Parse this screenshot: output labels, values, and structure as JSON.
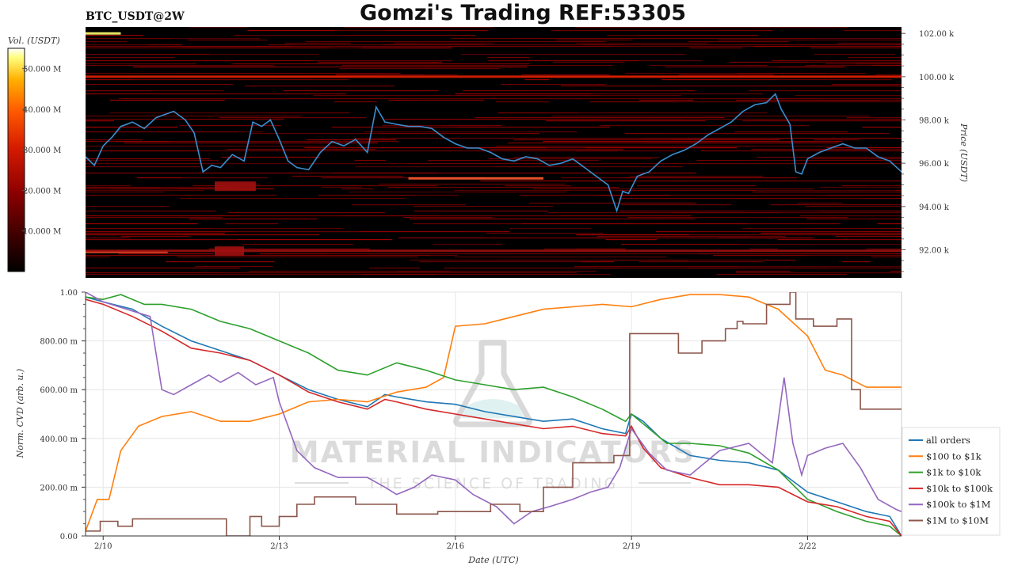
{
  "header": {
    "symbol": "BTC_USDT@2W",
    "title": "Gomzi's Trading REF:53305"
  },
  "watermark": {
    "brand": "MATERIAL INDICATORS",
    "tagline": "THE SCIENCE OF TRADING"
  },
  "chart_data": [
    {
      "type": "heatmap",
      "name": "orderbook-liquidity-heatmap",
      "colorbar": {
        "label": "Vol. (USDT)",
        "range": [
          0,
          55000000
        ],
        "ticks": [
          {
            "value": 10000000,
            "label": "10.000 M"
          },
          {
            "value": 20000000,
            "label": "20.000 M"
          },
          {
            "value": 30000000,
            "label": "30.000 M"
          },
          {
            "value": 40000000,
            "label": "40.000 M"
          },
          {
            "value": 50000000,
            "label": "50.000 M"
          }
        ],
        "colors": [
          "#000000",
          "#3a0000",
          "#8b0000",
          "#d41a00",
          "#ff5a00",
          "#ffb000",
          "#ffff80",
          "#ffffff"
        ]
      },
      "ylabel": "Price (USDT)",
      "ylim": [
        90700,
        102300
      ],
      "yticks": [
        {
          "value": 92000,
          "label": "92.00 k"
        },
        {
          "value": 94000,
          "label": "94.00 k"
        },
        {
          "value": 96000,
          "label": "96.00 k"
        },
        {
          "value": 98000,
          "label": "98.00 k"
        },
        {
          "value": 100000,
          "label": "100.00 k"
        },
        {
          "value": 102000,
          "label": "102.00 k"
        }
      ],
      "xlim": [
        9.7,
        23.6
      ],
      "liquidity_bands": [
        {
          "price": 102000,
          "start": 9.7,
          "end": 10.3,
          "intensity": 0.95
        },
        {
          "price": 100000,
          "start": 9.7,
          "end": 23.6,
          "intensity": 0.7
        },
        {
          "price": 95300,
          "start": 15.2,
          "end": 17.5,
          "intensity": 0.55
        },
        {
          "price": 91900,
          "start": 9.7,
          "end": 11.1,
          "intensity": 0.6
        },
        {
          "price": 91950,
          "start": 9.7,
          "end": 23.6,
          "intensity": 0.35
        },
        {
          "price": 95100,
          "start": 11.9,
          "end": 12.6,
          "intensity": 0.45
        },
        {
          "price": 92100,
          "start": 11.9,
          "end": 12.4,
          "intensity": 0.35
        }
      ],
      "price_series": {
        "name": "BTC price",
        "color": "#3a8fd0",
        "x": [
          9.7,
          9.85,
          10.0,
          10.15,
          10.3,
          10.5,
          10.7,
          10.9,
          11.0,
          11.2,
          11.4,
          11.55,
          11.7,
          11.85,
          12.0,
          12.2,
          12.4,
          12.55,
          12.7,
          12.85,
          13.0,
          13.15,
          13.3,
          13.5,
          13.7,
          13.9,
          14.1,
          14.3,
          14.5,
          14.65,
          14.8,
          15.0,
          15.2,
          15.4,
          15.6,
          15.8,
          16.0,
          16.2,
          16.4,
          16.6,
          16.8,
          17.0,
          17.2,
          17.4,
          17.6,
          17.8,
          18.0,
          18.2,
          18.4,
          18.6,
          18.75,
          18.85,
          18.95,
          19.1,
          19.3,
          19.5,
          19.7,
          19.9,
          20.1,
          20.3,
          20.5,
          20.7,
          20.9,
          21.1,
          21.3,
          21.45,
          21.55,
          21.7,
          21.8,
          21.9,
          22.0,
          22.2,
          22.4,
          22.6,
          22.8,
          23.0,
          23.2,
          23.4,
          23.6
        ],
        "y": [
          96300,
          95900,
          96800,
          97200,
          97700,
          97900,
          97600,
          98100,
          98200,
          98400,
          98000,
          97400,
          95600,
          95900,
          95800,
          96400,
          96100,
          97900,
          97700,
          98000,
          97100,
          96100,
          95800,
          95700,
          96500,
          97000,
          96800,
          97100,
          96500,
          98600,
          97900,
          97800,
          97700,
          97700,
          97600,
          97200,
          96900,
          96700,
          96700,
          96500,
          96200,
          96100,
          96300,
          96200,
          95900,
          96000,
          96200,
          95800,
          95400,
          95000,
          93800,
          94700,
          94600,
          95400,
          95600,
          96100,
          96400,
          96600,
          96900,
          97300,
          97600,
          97900,
          98400,
          98700,
          98800,
          99200,
          98500,
          97800,
          95600,
          95500,
          96200,
          96500,
          96700,
          96900,
          96700,
          96700,
          96300,
          96100,
          95600
        ]
      }
    },
    {
      "type": "line",
      "name": "normalized-cvd",
      "xlabel": "Date (UTC)",
      "ylabel": "Norm. CVD (arb. u.)",
      "xlim": [
        9.7,
        23.6
      ],
      "ylim": [
        0,
        1.0
      ],
      "xticks": [
        {
          "value": 10,
          "label": "2/10"
        },
        {
          "value": 13,
          "label": "2/13"
        },
        {
          "value": 16,
          "label": "2/16"
        },
        {
          "value": 19,
          "label": "2/19"
        },
        {
          "value": 22,
          "label": "2/22"
        }
      ],
      "yticks": [
        {
          "value": 0,
          "label": "0.00"
        },
        {
          "value": 0.2,
          "label": "200.00 m"
        },
        {
          "value": 0.4,
          "label": "400.00 m"
        },
        {
          "value": 0.6,
          "label": "600.00 m"
        },
        {
          "value": 0.8,
          "label": "800.00 m"
        },
        {
          "value": 1.0,
          "label": "1.00"
        }
      ],
      "grid": true,
      "legend_position": "right",
      "series": [
        {
          "name": "all orders",
          "color": "#1f77b4",
          "step": false,
          "x": [
            9.7,
            10.0,
            10.5,
            11.0,
            11.5,
            12.0,
            12.5,
            13.0,
            13.5,
            14.0,
            14.5,
            14.8,
            15.0,
            15.5,
            16.0,
            16.5,
            17.0,
            17.5,
            18.0,
            18.5,
            18.9,
            19.0,
            19.2,
            19.5,
            20.0,
            20.5,
            21.0,
            21.5,
            22.0,
            22.5,
            23.0,
            23.4,
            23.6
          ],
          "y": [
            0.98,
            0.96,
            0.93,
            0.86,
            0.8,
            0.76,
            0.72,
            0.66,
            0.6,
            0.56,
            0.53,
            0.58,
            0.57,
            0.55,
            0.54,
            0.51,
            0.49,
            0.47,
            0.48,
            0.44,
            0.42,
            0.5,
            0.47,
            0.4,
            0.33,
            0.31,
            0.3,
            0.27,
            0.18,
            0.14,
            0.1,
            0.08,
            0.0
          ]
        },
        {
          "name": "$100 to $1k",
          "color": "#ff7f0e",
          "step": false,
          "x": [
            9.7,
            9.9,
            10.1,
            10.3,
            10.6,
            11.0,
            11.5,
            12.0,
            12.5,
            13.0,
            13.5,
            14.0,
            14.5,
            15.0,
            15.5,
            15.8,
            16.0,
            16.5,
            17.0,
            17.5,
            18.0,
            18.5,
            19.0,
            19.5,
            20.0,
            20.5,
            21.0,
            21.5,
            22.0,
            22.3,
            22.6,
            23.0,
            23.6
          ],
          "y": [
            0.02,
            0.15,
            0.15,
            0.35,
            0.45,
            0.49,
            0.51,
            0.47,
            0.47,
            0.5,
            0.55,
            0.56,
            0.55,
            0.59,
            0.61,
            0.65,
            0.86,
            0.87,
            0.9,
            0.93,
            0.94,
            0.95,
            0.94,
            0.97,
            0.99,
            0.99,
            0.98,
            0.93,
            0.82,
            0.68,
            0.66,
            0.61,
            0.61
          ]
        },
        {
          "name": "$1k to $10k",
          "color": "#2ca02c",
          "step": false,
          "x": [
            9.7,
            10.0,
            10.3,
            10.7,
            11.0,
            11.5,
            12.0,
            12.5,
            13.0,
            13.5,
            14.0,
            14.5,
            15.0,
            15.5,
            16.0,
            16.5,
            17.0,
            17.5,
            18.0,
            18.5,
            18.9,
            19.0,
            19.3,
            19.6,
            20.0,
            20.5,
            21.0,
            21.5,
            22.0,
            22.5,
            23.0,
            23.4,
            23.6
          ],
          "y": [
            0.98,
            0.97,
            0.99,
            0.95,
            0.95,
            0.93,
            0.88,
            0.85,
            0.8,
            0.75,
            0.68,
            0.66,
            0.71,
            0.68,
            0.64,
            0.62,
            0.6,
            0.61,
            0.57,
            0.52,
            0.47,
            0.5,
            0.44,
            0.38,
            0.38,
            0.37,
            0.34,
            0.27,
            0.15,
            0.1,
            0.06,
            0.04,
            0.0
          ]
        },
        {
          "name": "$10k to $100k",
          "color": "#d62728",
          "step": false,
          "x": [
            9.7,
            10.0,
            10.5,
            11.0,
            11.5,
            12.0,
            12.5,
            13.0,
            13.5,
            14.0,
            14.5,
            14.8,
            15.0,
            15.5,
            16.0,
            16.5,
            17.0,
            17.5,
            18.0,
            18.5,
            18.9,
            19.0,
            19.2,
            19.5,
            20.0,
            20.5,
            21.0,
            21.5,
            22.0,
            22.5,
            23.0,
            23.4,
            23.6
          ],
          "y": [
            0.97,
            0.95,
            0.9,
            0.84,
            0.77,
            0.75,
            0.72,
            0.66,
            0.59,
            0.55,
            0.52,
            0.56,
            0.55,
            0.52,
            0.5,
            0.48,
            0.46,
            0.44,
            0.45,
            0.42,
            0.41,
            0.45,
            0.36,
            0.28,
            0.24,
            0.21,
            0.21,
            0.2,
            0.14,
            0.12,
            0.08,
            0.06,
            0.0
          ]
        },
        {
          "name": "$100k to $1M",
          "color": "#9467bd",
          "step": false,
          "x": [
            9.7,
            10.0,
            10.4,
            10.8,
            11.0,
            11.2,
            11.5,
            11.8,
            12.0,
            12.3,
            12.6,
            12.9,
            13.0,
            13.3,
            13.6,
            14.0,
            14.5,
            14.8,
            15.0,
            15.3,
            15.6,
            16.0,
            16.3,
            16.7,
            17.0,
            17.3,
            17.6,
            18.0,
            18.3,
            18.6,
            18.8,
            19.0,
            19.3,
            19.6,
            20.0,
            20.5,
            21.0,
            21.4,
            21.6,
            21.75,
            21.9,
            22.0,
            22.3,
            22.6,
            22.9,
            23.2,
            23.5,
            23.6
          ],
          "y": [
            1.0,
            0.96,
            0.93,
            0.9,
            0.6,
            0.58,
            0.62,
            0.66,
            0.63,
            0.67,
            0.62,
            0.65,
            0.55,
            0.35,
            0.28,
            0.24,
            0.24,
            0.2,
            0.17,
            0.2,
            0.25,
            0.23,
            0.17,
            0.12,
            0.05,
            0.1,
            0.12,
            0.15,
            0.18,
            0.2,
            0.28,
            0.44,
            0.34,
            0.27,
            0.25,
            0.35,
            0.38,
            0.3,
            0.65,
            0.38,
            0.25,
            0.33,
            0.36,
            0.38,
            0.28,
            0.15,
            0.11,
            0.1
          ]
        },
        {
          "name": "$1M to $10M",
          "color": "#8c564b",
          "step": true,
          "x": [
            9.7,
            9.95,
            10.25,
            10.5,
            11.4,
            12.1,
            12.5,
            12.7,
            13.0,
            13.3,
            13.6,
            14.3,
            15.0,
            15.7,
            16.1,
            16.6,
            17.1,
            17.5,
            18.0,
            18.7,
            18.97,
            19.35,
            19.8,
            20.2,
            20.6,
            20.8,
            20.9,
            21.05,
            21.3,
            21.55,
            21.7,
            21.8,
            22.1,
            22.5,
            22.75,
            22.9,
            23.6
          ],
          "y": [
            0.02,
            0.06,
            0.04,
            0.07,
            0.07,
            0.0,
            0.08,
            0.04,
            0.08,
            0.13,
            0.16,
            0.13,
            0.09,
            0.1,
            0.1,
            0.13,
            0.1,
            0.2,
            0.3,
            0.33,
            0.83,
            0.83,
            0.75,
            0.8,
            0.85,
            0.88,
            0.87,
            0.87,
            0.95,
            0.95,
            1.0,
            0.89,
            0.86,
            0.89,
            0.6,
            0.52,
            0.52
          ]
        }
      ]
    }
  ]
}
